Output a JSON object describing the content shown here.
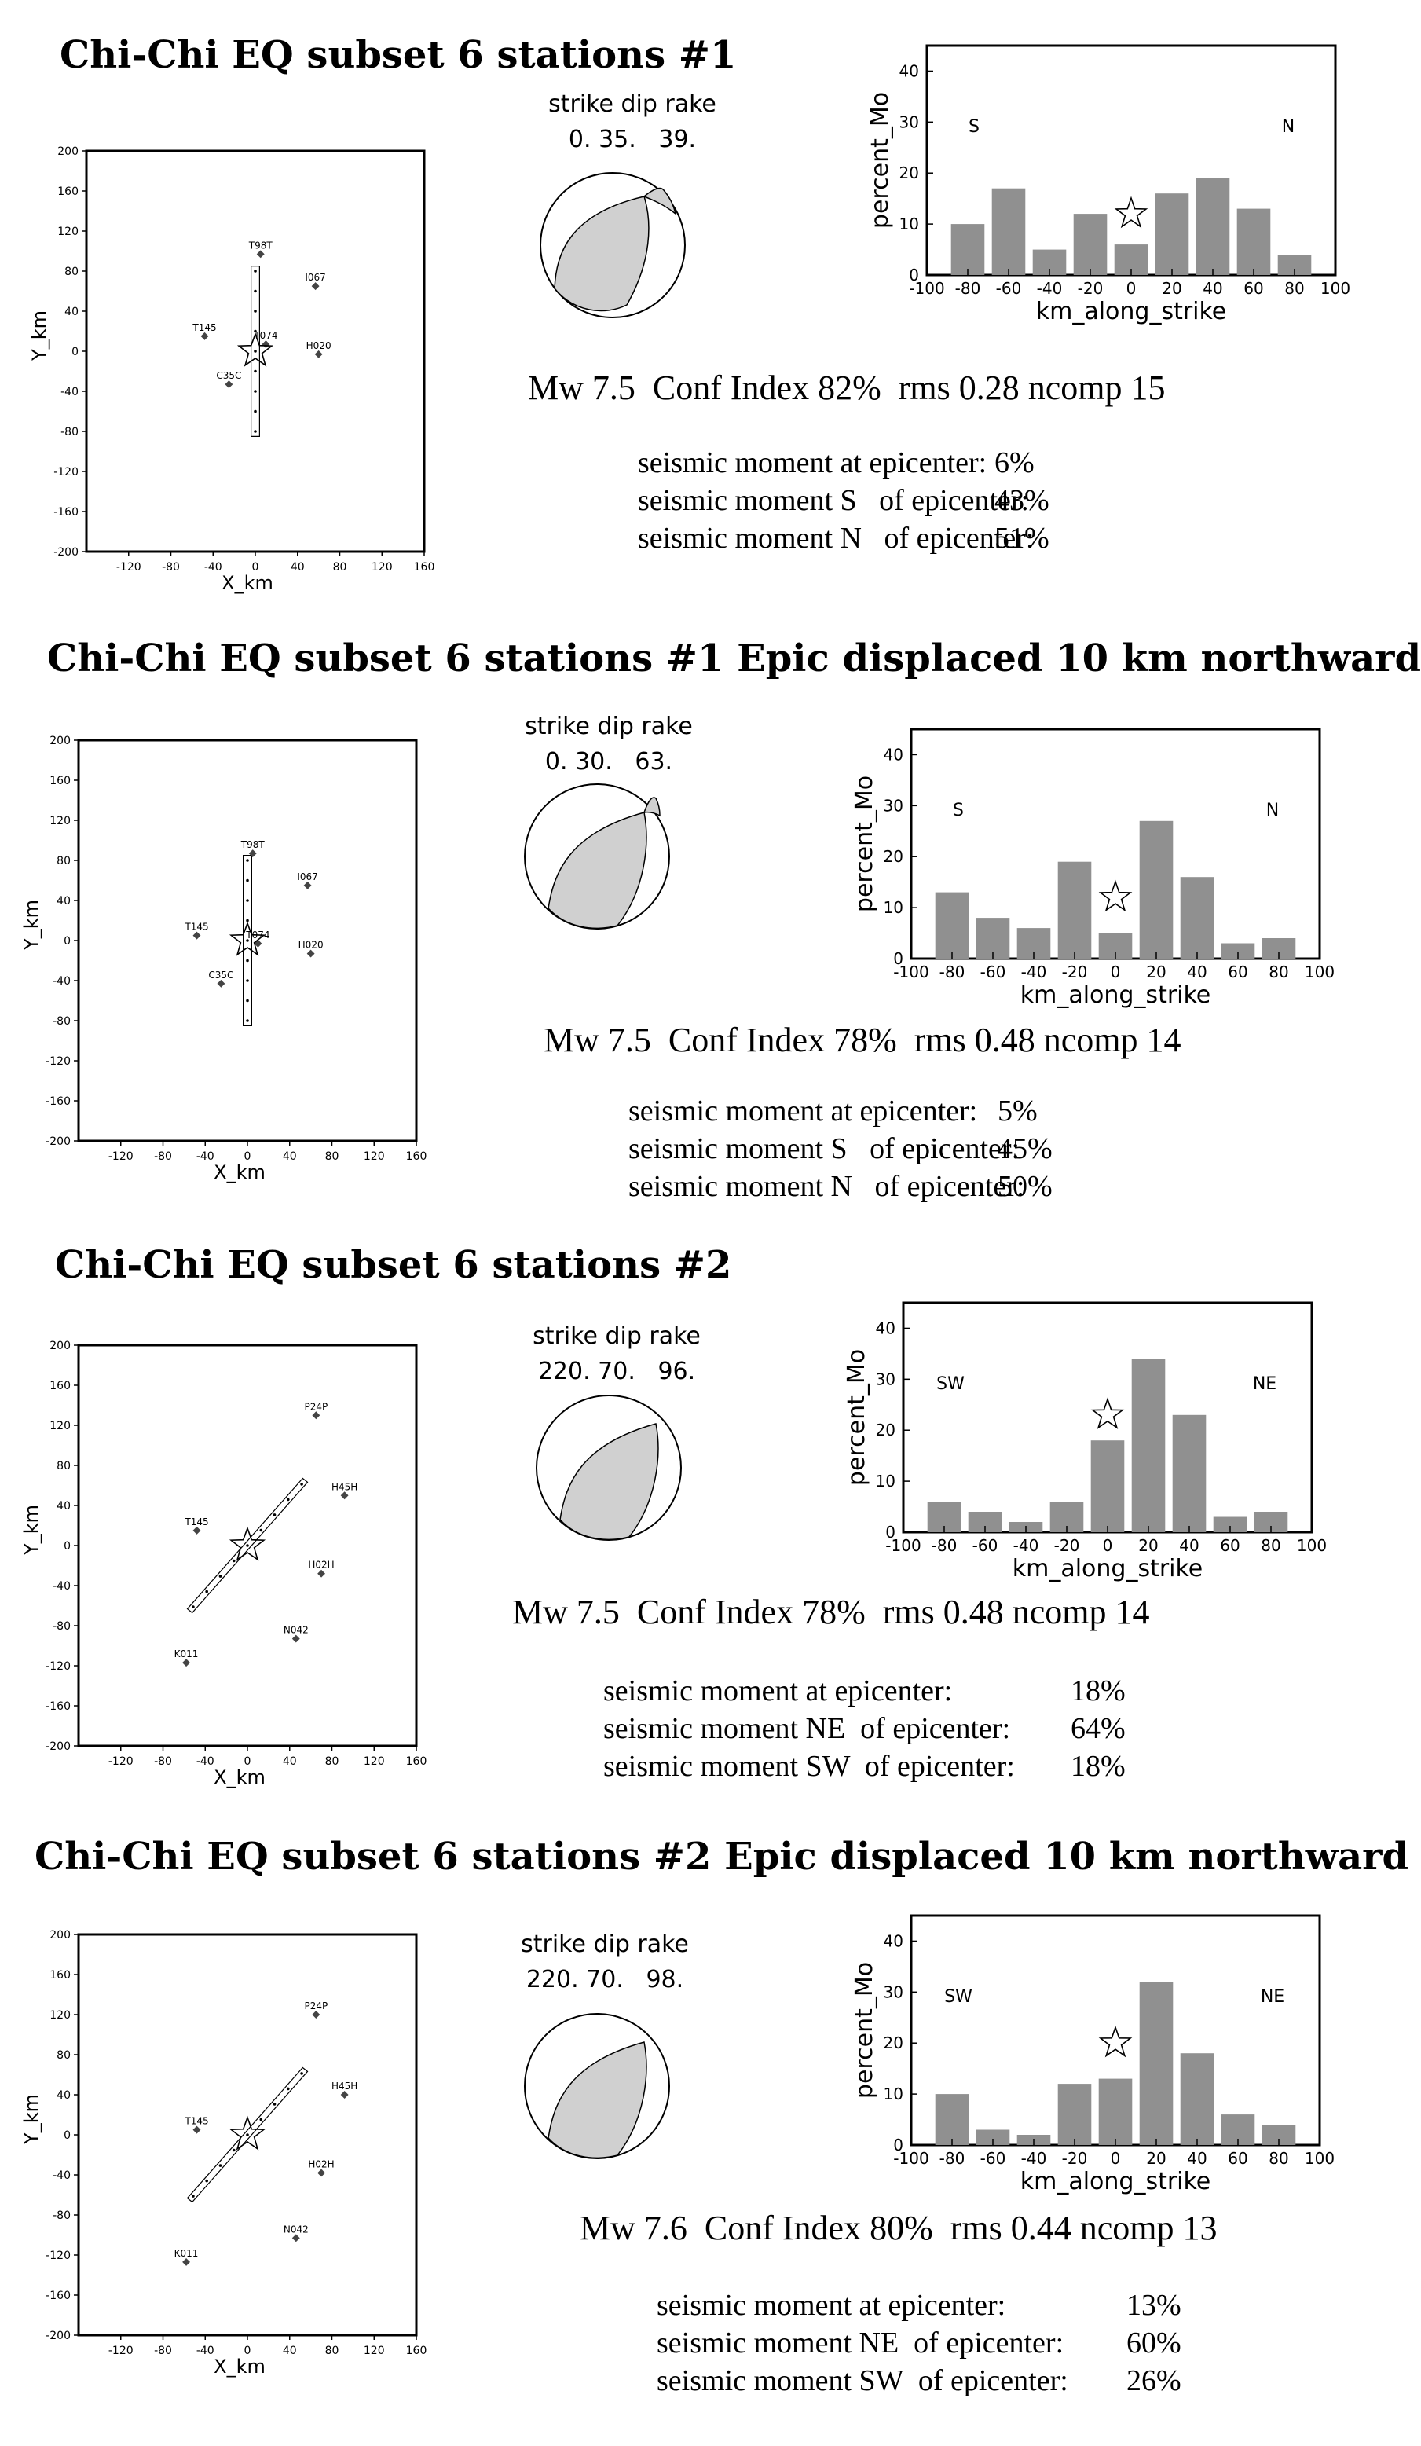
{
  "panels": [
    {
      "title": "Chi-Chi EQ  subset 6 stations #1",
      "mechanism": {
        "header": "strike dip rake",
        "values": "0. 35.   39.",
        "strike": 0,
        "dip": 35,
        "rake": 39
      },
      "summary": "Mw 7.5  Conf Index 82%  rms 0.28 ncomp 15",
      "stats": [
        {
          "label": "seismic moment at epicenter:",
          "value": "6%"
        },
        {
          "label": "seismic moment S   of epicenter:",
          "value": "43%"
        },
        {
          "label": "seismic moment N   of epicenter:",
          "value": "51%"
        }
      ],
      "map": {
        "x_label": "X_km",
        "y_label": "Y_km",
        "x_ticks": [
          "-120",
          "-80",
          "-40",
          "0",
          "40",
          "80",
          "120",
          "160"
        ],
        "y_ticks": [
          "200",
          "160",
          "120",
          "80",
          "40",
          "0",
          "-40",
          "-80",
          "-120",
          "-160",
          "-200"
        ],
        "fault": {
          "strike": 0,
          "half_length_km": 85,
          "half_width_km": 4
        },
        "stations": [
          {
            "name": "T98T",
            "x": 5,
            "y": 97
          },
          {
            "name": "I067",
            "x": 57,
            "y": 65
          },
          {
            "name": "T145",
            "x": -48,
            "y": 15
          },
          {
            "name": "T074",
            "x": 10,
            "y": 7
          },
          {
            "name": "H020",
            "x": 60,
            "y": -3
          },
          {
            "name": "C35C",
            "x": -25,
            "y": -33
          }
        ]
      },
      "chart_data": {
        "type": "bar",
        "x": [
          -80,
          -60,
          -40,
          -20,
          0,
          20,
          40,
          60,
          80
        ],
        "values": [
          10,
          17,
          5,
          12,
          6,
          16,
          19,
          13,
          4
        ],
        "xlabel": "km_along_strike",
        "ylabel": "percent_Mo",
        "xlim": [
          -100,
          100
        ],
        "ylim": [
          0,
          45
        ],
        "x_ticks": [
          "-100",
          "-80",
          "-60",
          "-40",
          "-20",
          "0",
          "20",
          "40",
          "60",
          "80",
          "100"
        ],
        "y_ticks": [
          "0",
          "10",
          "20",
          "30",
          "40"
        ],
        "left_label": "S",
        "right_label": "N",
        "epicenter_marker": {
          "x": 0,
          "y": 12
        }
      }
    },
    {
      "title": "Chi-Chi EQ  subset 6 stations #1 Epic displaced 10 km northward",
      "mechanism": {
        "header": "strike dip rake",
        "values": "0. 30.   63.",
        "strike": 0,
        "dip": 30,
        "rake": 63
      },
      "summary": "Mw 7.5  Conf Index 78%  rms 0.48 ncomp 14",
      "stats": [
        {
          "label": "seismic moment at epicenter:",
          "value": "5%"
        },
        {
          "label": "seismic moment S   of epicenter:",
          "value": "45%"
        },
        {
          "label": "seismic moment N   of epicenter:",
          "value": "50%"
        }
      ],
      "map": {
        "x_label": "X_km",
        "y_label": "Y_km",
        "x_ticks": [
          "-120",
          "-80",
          "-40",
          "0",
          "40",
          "80",
          "120",
          "160"
        ],
        "y_ticks": [
          "200",
          "160",
          "120",
          "80",
          "40",
          "0",
          "-40",
          "-80",
          "-120",
          "-160",
          "-200"
        ],
        "fault": {
          "strike": 0,
          "half_length_km": 85,
          "half_width_km": 4
        },
        "stations": [
          {
            "name": "T98T",
            "x": 5,
            "y": 87
          },
          {
            "name": "I067",
            "x": 57,
            "y": 55
          },
          {
            "name": "T145",
            "x": -48,
            "y": 5
          },
          {
            "name": "T074",
            "x": 10,
            "y": -3
          },
          {
            "name": "H020",
            "x": 60,
            "y": -13
          },
          {
            "name": "C35C",
            "x": -25,
            "y": -43
          }
        ]
      },
      "chart_data": {
        "type": "bar",
        "x": [
          -80,
          -60,
          -40,
          -20,
          0,
          20,
          40,
          60,
          80
        ],
        "values": [
          13,
          8,
          6,
          19,
          5,
          27,
          16,
          3,
          4
        ],
        "xlabel": "km_along_strike",
        "ylabel": "percent_Mo",
        "xlim": [
          -100,
          100
        ],
        "ylim": [
          0,
          45
        ],
        "x_ticks": [
          "-100",
          "-80",
          "-60",
          "-40",
          "-20",
          "0",
          "20",
          "40",
          "60",
          "80",
          "100"
        ],
        "y_ticks": [
          "0",
          "10",
          "20",
          "30",
          "40"
        ],
        "left_label": "S",
        "right_label": "N",
        "epicenter_marker": {
          "x": 0,
          "y": 12
        }
      }
    },
    {
      "title": "Chi-Chi EQ  subset 6 stations #2",
      "mechanism": {
        "header": "strike dip rake",
        "values": "220. 70.   96.",
        "strike": 220,
        "dip": 70,
        "rake": 96
      },
      "summary": "Mw 7.5  Conf Index 78%  rms 0.48 ncomp 14",
      "stats": [
        {
          "label": "seismic moment at epicenter:",
          "value": "18%"
        },
        {
          "label": "seismic moment NE  of epicenter:",
          "value": "64%"
        },
        {
          "label": "seismic moment SW  of epicenter:",
          "value": "18%"
        }
      ],
      "map": {
        "x_label": "X_km",
        "y_label": "Y_km",
        "x_ticks": [
          "-120",
          "-80",
          "-40",
          "0",
          "40",
          "80",
          "120",
          "160"
        ],
        "y_ticks": [
          "200",
          "160",
          "120",
          "80",
          "40",
          "0",
          "-40",
          "-80",
          "-120",
          "-160",
          "-200"
        ],
        "fault": {
          "strike": 40,
          "half_length_km": 85,
          "half_width_km": 3
        },
        "stations": [
          {
            "name": "P24P",
            "x": 65,
            "y": 130
          },
          {
            "name": "H45H",
            "x": 92,
            "y": 50
          },
          {
            "name": "T145",
            "x": -48,
            "y": 15
          },
          {
            "name": "H02H",
            "x": 70,
            "y": -28
          },
          {
            "name": "N042",
            "x": 46,
            "y": -93
          },
          {
            "name": "K011",
            "x": -58,
            "y": -117
          }
        ]
      },
      "chart_data": {
        "type": "bar",
        "x": [
          -80,
          -60,
          -40,
          -20,
          0,
          20,
          40,
          60,
          80
        ],
        "values": [
          6,
          4,
          2,
          6,
          18,
          34,
          23,
          3,
          4
        ],
        "xlabel": "km_along_strike",
        "ylabel": "percent_Mo",
        "xlim": [
          -100,
          100
        ],
        "ylim": [
          0,
          45
        ],
        "x_ticks": [
          "-100",
          "-80",
          "-60",
          "-40",
          "-20",
          "0",
          "20",
          "40",
          "60",
          "80",
          "100"
        ],
        "y_ticks": [
          "0",
          "10",
          "20",
          "30",
          "40"
        ],
        "left_label": "SW",
        "right_label": "NE",
        "epicenter_marker": {
          "x": 0,
          "y": 23
        }
      }
    },
    {
      "title": "Chi-Chi EQ  subset 6 stations #2 Epic displaced 10 km northward",
      "mechanism": {
        "header": "strike dip rake",
        "values": "220. 70.   98.",
        "strike": 220,
        "dip": 70,
        "rake": 98
      },
      "summary": "Mw 7.6  Conf Index 80%  rms 0.44 ncomp 13",
      "stats": [
        {
          "label": "seismic moment at epicenter:",
          "value": "13%"
        },
        {
          "label": "seismic moment NE  of epicenter:",
          "value": "60%"
        },
        {
          "label": "seismic moment SW  of epicenter:",
          "value": "26%"
        }
      ],
      "map": {
        "x_label": "X_km",
        "y_label": "Y_km",
        "x_ticks": [
          "-120",
          "-80",
          "-40",
          "0",
          "40",
          "80",
          "120",
          "160"
        ],
        "y_ticks": [
          "200",
          "160",
          "120",
          "80",
          "40",
          "0",
          "-40",
          "-80",
          "-120",
          "-160",
          "-200"
        ],
        "fault": {
          "strike": 40,
          "half_length_km": 85,
          "half_width_km": 3
        },
        "stations": [
          {
            "name": "P24P",
            "x": 65,
            "y": 120
          },
          {
            "name": "H45H",
            "x": 92,
            "y": 40
          },
          {
            "name": "T145",
            "x": -48,
            "y": 5
          },
          {
            "name": "H02H",
            "x": 70,
            "y": -38
          },
          {
            "name": "N042",
            "x": 46,
            "y": -103
          },
          {
            "name": "K011",
            "x": -58,
            "y": -127
          }
        ]
      },
      "chart_data": {
        "type": "bar",
        "x": [
          -80,
          -60,
          -40,
          -20,
          0,
          20,
          40,
          60,
          80
        ],
        "values": [
          10,
          3,
          2,
          12,
          13,
          32,
          18,
          6,
          4
        ],
        "xlabel": "km_along_strike",
        "ylabel": "percent_Mo",
        "xlim": [
          -100,
          100
        ],
        "ylim": [
          0,
          45
        ],
        "x_ticks": [
          "-100",
          "-80",
          "-60",
          "-40",
          "-20",
          "0",
          "20",
          "40",
          "60",
          "80",
          "100"
        ],
        "y_ticks": [
          "0",
          "10",
          "20",
          "30",
          "40"
        ],
        "left_label": "SW",
        "right_label": "NE",
        "epicenter_marker": {
          "x": 0,
          "y": 20
        }
      }
    }
  ]
}
